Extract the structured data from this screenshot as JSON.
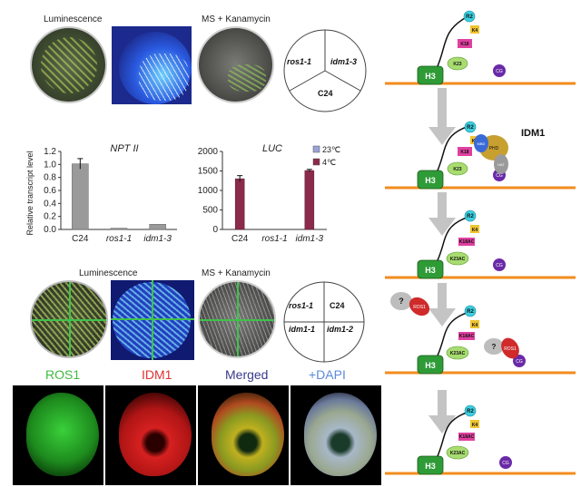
{
  "panel_top": {
    "label_luminescence": "Luminescence",
    "label_ms": "MS + Kanamycin",
    "pie": [
      "ros1-1",
      "idm1-3",
      "C24"
    ]
  },
  "panel_bottom": {
    "label_luminescence": "Luminescence",
    "label_ms": "MS + Kanamycin",
    "quad": [
      "ros1-1",
      "C24",
      "idm1-1",
      "idm1-2"
    ]
  },
  "if_labels": {
    "ros1": "ROS1",
    "idm1": "IDM1",
    "merged": "Merged",
    "dapi": "+DAPI"
  },
  "colors": {
    "bar_gray": "#9a9a9a",
    "bar_red": "#8b2a4a",
    "legend_23": "#9aa3d6",
    "orange_line": "#f28c1e",
    "h3_green": "#2e9b37"
  },
  "chart_data": [
    {
      "type": "bar",
      "title": "NPT II",
      "ylabel": "Relative transcript level",
      "categories": [
        "C24",
        "ros1-1",
        "idm1-3"
      ],
      "values": [
        1.01,
        0.02,
        0.08
      ],
      "errors": [
        0.08,
        0.005,
        0.01
      ],
      "ylim": [
        0,
        1.2
      ],
      "yticks": [
        "0.0",
        "0.2",
        "0.4",
        "0.6",
        "0.8",
        "1.0",
        "1.2"
      ]
    },
    {
      "type": "bar",
      "title": "LUC",
      "categories": [
        "C24",
        "ros1-1",
        "idm1-3"
      ],
      "series": [
        {
          "name": "23℃",
          "values": [
            0,
            0,
            0
          ]
        },
        {
          "name": "4℃",
          "values": [
            1300,
            0,
            1510
          ]
        }
      ],
      "errors": [
        80,
        0,
        30
      ],
      "ylim": [
        0,
        2000
      ],
      "yticks": [
        "0",
        "500",
        "1000",
        "1500",
        "2000"
      ],
      "legend": "top-right"
    }
  ],
  "diagram": {
    "idm1_label": "IDM1",
    "h3": "H3",
    "cg": "CG",
    "r2": "R2",
    "k4": "K4",
    "k18": "K18",
    "k23": "K23",
    "k18ac": "K18AC",
    "k23ac": "K23AC",
    "phd": "PHD",
    "mbd": "MBD",
    "hat": "HAT",
    "ros1": "ROS1",
    "question": "?"
  }
}
